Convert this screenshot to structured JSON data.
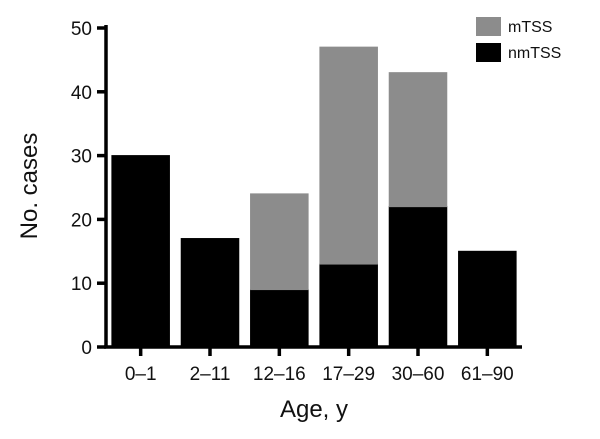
{
  "chart_data": {
    "type": "bar",
    "stacked": true,
    "categories": [
      "0–1",
      "2–11",
      "12–16",
      "17–29",
      "30–60",
      "61–90"
    ],
    "series": [
      {
        "name": "nmTSS",
        "values": [
          30,
          17,
          9,
          13,
          22,
          15
        ],
        "color": "#000000"
      },
      {
        "name": "mTSS",
        "values": [
          0,
          0,
          15,
          34,
          21,
          0
        ],
        "color": "#8c8c8c"
      }
    ],
    "xlabel": "Age, y",
    "ylabel": "No. cases",
    "ylim": [
      0,
      50
    ],
    "yticks": [
      0,
      10,
      20,
      30,
      40,
      50
    ],
    "grid": false,
    "legend_position": "top-right"
  }
}
